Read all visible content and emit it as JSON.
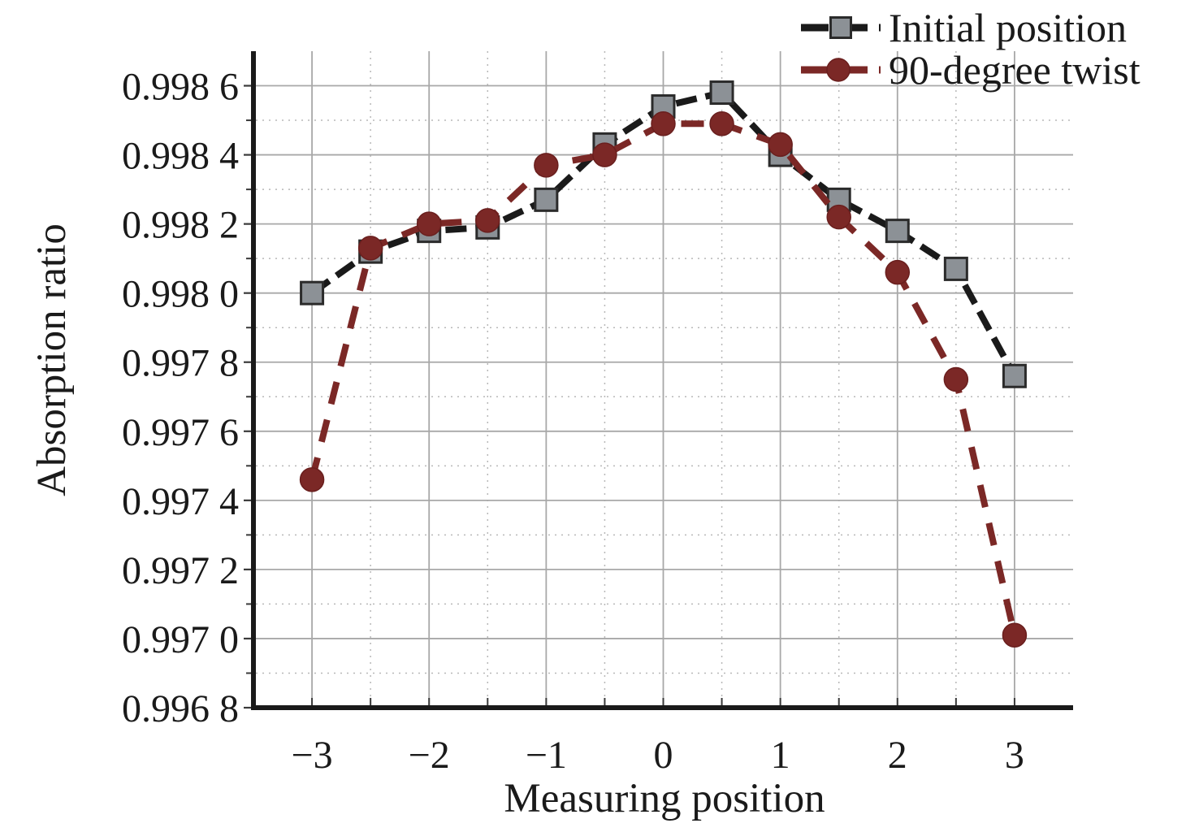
{
  "figure": {
    "background": "#ffffff"
  },
  "chart_data": {
    "type": "line",
    "title": "",
    "xlabel": "Measuring position",
    "ylabel": "Absorption ratio",
    "xlim": [
      -3.5,
      3.5
    ],
    "ylim": [
      0.9968,
      0.9987
    ],
    "grid": {
      "show": true,
      "major_color": "#a8a8a8",
      "minor_color": "#b8b8b8"
    },
    "axis_color": "#1a1a1a",
    "tick_color": "#3a3a3a",
    "legend_position": "top-right",
    "x": [
      -3,
      -2.5,
      -2,
      -1.5,
      -1,
      -0.5,
      0,
      0.5,
      1,
      1.5,
      2,
      2.5,
      3
    ],
    "series": [
      {
        "name": "Initial position",
        "color": "#1a1a1a",
        "dash": "26 11",
        "marker": "square",
        "marker_fill": "#8c9196",
        "marker_stroke": "#2b2b2b",
        "values": [
          0.998,
          0.99812,
          0.99818,
          0.99819,
          0.99827,
          0.99843,
          0.99854,
          0.99858,
          0.9984,
          0.99827,
          0.99818,
          0.99807,
          0.99776
        ]
      },
      {
        "name": "90-degree twist",
        "color": "#7b2826",
        "dash": "28 20",
        "marker": "circle",
        "marker_fill": "#7b2826",
        "marker_stroke": "#6a1f1e",
        "values": [
          0.99746,
          0.99813,
          0.9982,
          0.99821,
          0.99837,
          0.9984,
          0.99849,
          0.99849,
          0.99843,
          0.99822,
          0.99806,
          0.99775,
          0.99701
        ]
      }
    ],
    "x_ticks": {
      "values": [
        -3,
        -2,
        -1,
        0,
        1,
        2,
        3
      ],
      "labels": [
        "−3",
        "−2",
        "−1",
        "0",
        "1",
        "2",
        "3"
      ],
      "minor": [
        -2.5,
        -1.5,
        -0.5,
        0.5,
        1.5,
        2.5
      ]
    },
    "y_ticks": {
      "values": [
        0.9968,
        0.997,
        0.9972,
        0.9974,
        0.9976,
        0.9978,
        0.998,
        0.9982,
        0.9984,
        0.9986
      ],
      "labels": [
        "0.996 8",
        "0.997 0",
        "0.997 2",
        "0.997 4",
        "0.997 6",
        "0.997 8",
        "0.998 0",
        "0.998 2",
        "0.998 4",
        "0.998 6"
      ],
      "minor": [
        0.9969,
        0.9971,
        0.9973,
        0.9975,
        0.9977,
        0.9979,
        0.9981,
        0.9983,
        0.9985
      ]
    }
  }
}
